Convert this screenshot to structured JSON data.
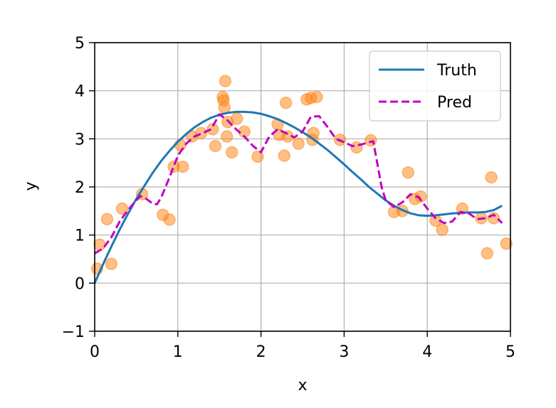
{
  "chart_data": {
    "type": "scatter",
    "title": "",
    "xlabel": "x",
    "ylabel": "y",
    "xlim": [
      0,
      5
    ],
    "ylim": [
      -1,
      5
    ],
    "xticks": [
      "0",
      "1",
      "2",
      "3",
      "4",
      "5"
    ],
    "yticks": [
      "−1",
      "0",
      "1",
      "2",
      "3",
      "4",
      "5"
    ],
    "grid": true,
    "legend_position": "upper-right",
    "series": [
      {
        "name": "Truth",
        "kind": "line",
        "style": "solid",
        "color": "#1f77b4",
        "x": [
          0,
          0.1,
          0.2,
          0.3,
          0.4,
          0.5,
          0.6,
          0.7,
          0.8,
          0.9,
          1.0,
          1.1,
          1.2,
          1.3,
          1.4,
          1.5,
          1.6,
          1.7,
          1.8,
          1.9,
          2.0,
          2.1,
          2.2,
          2.3,
          2.4,
          2.5,
          2.6,
          2.7,
          2.8,
          2.9,
          3.0,
          3.1,
          3.2,
          3.3,
          3.4,
          3.5,
          3.6,
          3.7,
          3.8,
          3.9,
          4.0,
          4.1,
          4.2,
          4.3,
          4.4,
          4.5,
          4.6,
          4.7,
          4.8,
          4.9
        ],
        "y": [
          0.0,
          0.39,
          0.76,
          1.11,
          1.44,
          1.75,
          2.03,
          2.3,
          2.54,
          2.75,
          2.94,
          3.1,
          3.24,
          3.35,
          3.44,
          3.5,
          3.54,
          3.56,
          3.56,
          3.55,
          3.52,
          3.47,
          3.41,
          3.33,
          3.24,
          3.14,
          3.03,
          2.9,
          2.77,
          2.62,
          2.47,
          2.31,
          2.16,
          2.0,
          1.86,
          1.72,
          1.61,
          1.52,
          1.45,
          1.41,
          1.4,
          1.41,
          1.43,
          1.45,
          1.46,
          1.47,
          1.47,
          1.48,
          1.52,
          1.61
        ]
      },
      {
        "name": "Pred",
        "kind": "line",
        "style": "dashed",
        "color": "#bf00bf",
        "x": [
          0.0,
          0.1,
          0.2,
          0.3,
          0.4,
          0.5,
          0.55,
          0.6,
          0.7,
          0.75,
          0.8,
          0.9,
          1.0,
          1.1,
          1.2,
          1.3,
          1.4,
          1.5,
          1.6,
          1.7,
          1.8,
          1.9,
          2.0,
          2.1,
          2.2,
          2.3,
          2.4,
          2.5,
          2.6,
          2.7,
          2.8,
          2.9,
          3.0,
          3.1,
          3.2,
          3.3,
          3.35,
          3.45,
          3.5,
          3.6,
          3.7,
          3.8,
          3.9,
          4.0,
          4.1,
          4.2,
          4.3,
          4.4,
          4.5,
          4.6,
          4.7,
          4.8,
          4.9
        ],
        "y": [
          0.62,
          0.72,
          0.95,
          1.28,
          1.52,
          1.72,
          1.81,
          1.78,
          1.65,
          1.64,
          1.78,
          2.2,
          2.65,
          2.9,
          3.05,
          3.12,
          3.2,
          3.51,
          3.38,
          3.2,
          3.05,
          2.86,
          2.72,
          3.05,
          3.2,
          3.12,
          3.03,
          3.15,
          3.46,
          3.47,
          3.25,
          3.0,
          2.93,
          2.85,
          2.88,
          2.93,
          2.95,
          2.0,
          1.72,
          1.58,
          1.68,
          1.85,
          1.78,
          1.55,
          1.35,
          1.25,
          1.28,
          1.48,
          1.45,
          1.33,
          1.35,
          1.42,
          1.25
        ]
      },
      {
        "name": "",
        "kind": "scatter",
        "color": "#ff7f0e",
        "x": [
          0.03,
          0.06,
          0.15,
          0.2,
          0.33,
          0.57,
          0.82,
          0.9,
          0.95,
          1.03,
          1.06,
          1.17,
          1.28,
          1.42,
          1.45,
          1.54,
          1.55,
          1.56,
          1.57,
          1.59,
          1.6,
          1.65,
          1.71,
          1.8,
          1.96,
          2.2,
          2.22,
          2.28,
          2.3,
          2.32,
          2.45,
          2.55,
          2.6,
          2.62,
          2.63,
          2.67,
          2.95,
          3.15,
          3.32,
          3.6,
          3.7,
          3.77,
          3.85,
          3.92,
          4.1,
          4.18,
          4.42,
          4.65,
          4.72,
          4.77,
          4.8,
          4.95
        ],
        "y": [
          0.3,
          0.8,
          1.33,
          0.4,
          1.55,
          1.85,
          1.42,
          1.32,
          2.42,
          2.87,
          2.42,
          3.05,
          3.12,
          3.2,
          2.85,
          3.87,
          3.8,
          3.65,
          4.2,
          3.05,
          3.35,
          2.72,
          3.42,
          3.15,
          2.63,
          3.3,
          3.08,
          2.65,
          3.75,
          3.05,
          2.9,
          3.82,
          3.85,
          2.98,
          3.12,
          3.87,
          2.98,
          2.82,
          2.97,
          1.48,
          1.5,
          2.3,
          1.75,
          1.8,
          1.3,
          1.11,
          1.55,
          1.35,
          0.62,
          2.2,
          1.35,
          0.82
        ]
      }
    ]
  }
}
